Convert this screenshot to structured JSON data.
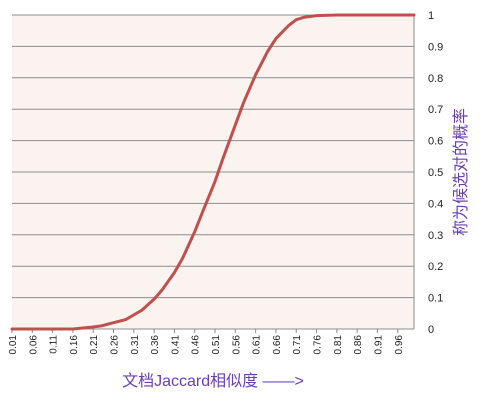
{
  "chart_data": {
    "type": "line",
    "xlabel": "文档Jaccard相似度 ——>",
    "ylabel": "称为候选对的概率",
    "ylim": [
      0,
      1
    ],
    "yticks": [
      "0",
      "0.1",
      "0.2",
      "0.3",
      "0.4",
      "0.5",
      "0.6",
      "0.7",
      "0.8",
      "0.9",
      "1"
    ],
    "xtick_labels": [
      "0.01",
      "0.06",
      "0.11",
      "0.16",
      "0.21",
      "0.26",
      "0.31",
      "0.36",
      "0.41",
      "0.46",
      "0.51",
      "0.56",
      "0.61",
      "0.66",
      "0.71",
      "0.76",
      "0.81",
      "0.86",
      "0.91",
      "0.96"
    ],
    "grid": true,
    "legend": "none",
    "line_color": "#c0504d",
    "series": [
      {
        "x": [
          0.01,
          0.06,
          0.11,
          0.16,
          0.2,
          0.23,
          0.26,
          0.29,
          0.31,
          0.33,
          0.36,
          0.38,
          0.41,
          0.43,
          0.46,
          0.48,
          0.51,
          0.53,
          0.56,
          0.58,
          0.61,
          0.64,
          0.66,
          0.69,
          0.71,
          0.73,
          0.76,
          0.81,
          0.86,
          0.91,
          0.96,
          1.0
        ],
        "y": [
          0,
          0,
          0,
          0,
          0.005,
          0.01,
          0.02,
          0.03,
          0.045,
          0.06,
          0.095,
          0.125,
          0.18,
          0.225,
          0.31,
          0.375,
          0.47,
          0.545,
          0.65,
          0.72,
          0.81,
          0.885,
          0.925,
          0.965,
          0.985,
          0.993,
          0.998,
          1.0,
          1.0,
          1.0,
          1.0,
          1.0
        ]
      }
    ]
  }
}
